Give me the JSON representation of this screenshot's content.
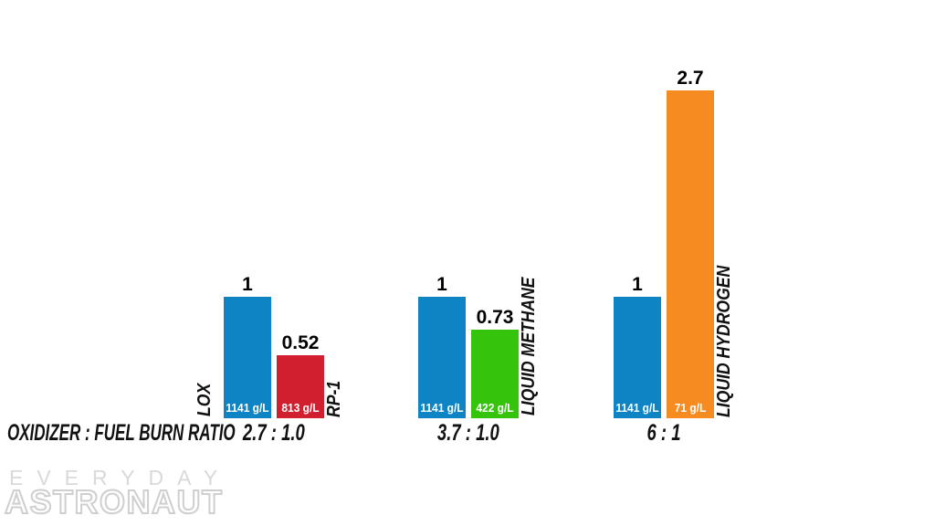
{
  "chart_data": {
    "type": "bar",
    "axis_label": "OXIDIZER : FUEL BURN RATIO",
    "categories": [
      "2.7 : 1.0",
      "3.7 : 1.0",
      "6 : 1"
    ],
    "legend_position": "none",
    "grid": false,
    "groups": [
      {
        "ratio_label": "2.7 : 1.0",
        "oxidizer": {
          "name": "LOX",
          "value": 1,
          "value_label": "1",
          "density": "1141 g/L",
          "color": "#0e84c4"
        },
        "fuel": {
          "name": "RP-1",
          "value": 0.52,
          "value_label": "0.52",
          "density": "813 g/L",
          "color": "#d11f30"
        }
      },
      {
        "ratio_label": "3.7 : 1.0",
        "oxidizer": {
          "name": "LOX",
          "value": 1,
          "value_label": "1",
          "density": "1141 g/L",
          "color": "#0e84c4"
        },
        "fuel": {
          "name": "LIQUID METHANE",
          "value": 0.73,
          "value_label": "0.73",
          "density": "422 g/L",
          "color": "#35c30b"
        }
      },
      {
        "ratio_label": "6 : 1",
        "oxidizer": {
          "name": "LOX",
          "value": 1,
          "value_label": "1",
          "density": "1141 g/L",
          "color": "#0e84c4"
        },
        "fuel": {
          "name": "LIQUID HYDROGEN",
          "value": 2.7,
          "value_label": "2.7",
          "density": "71 g/L",
          "color": "#f68b22"
        }
      }
    ]
  },
  "watermark": {
    "line1": "EVERYDAY",
    "line2": "ASTRONAUT",
    "color": "#d9d9d9"
  }
}
